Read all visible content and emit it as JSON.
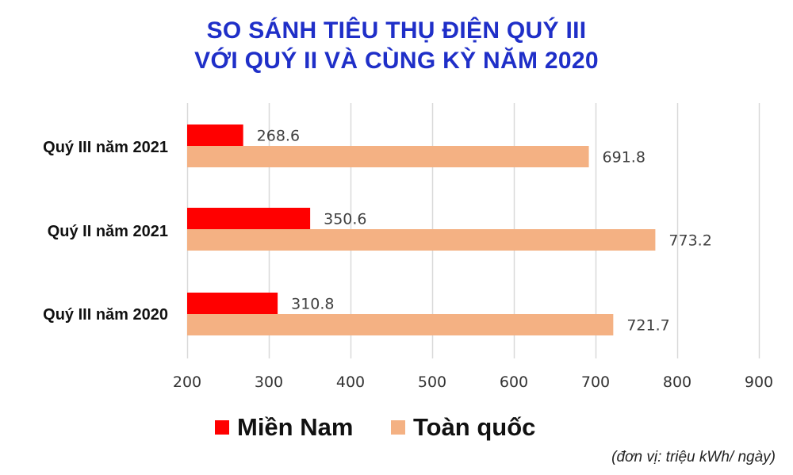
{
  "title_lines": [
    "SO SÁNH TIÊU THỤ ĐIỆN QUÝ III",
    "VỚI QUÝ II VÀ CÙNG KỲ NĂM 2020"
  ],
  "unit_note": "(đơn vị: triệu kWh/ ngày)",
  "colors": {
    "title": "#1f2fc8",
    "mien_nam": "#ff0000",
    "toan_quoc": "#f4b183",
    "grid": "#d9d9d9"
  },
  "chart_data": {
    "type": "bar",
    "orientation": "horizontal",
    "title": "SO SÁNH TIÊU THỤ ĐIỆN QUÝ III VỚI QUÝ II VÀ CÙNG KỲ NĂM 2020",
    "categories": [
      "Quý III năm 2021",
      "Quý II năm 2021",
      "Quý III năm 2020"
    ],
    "series": [
      {
        "name": "Miền Nam",
        "values": [
          268.6,
          350.6,
          310.8
        ],
        "labels": [
          "268.6",
          "350.6",
          "310.8"
        ]
      },
      {
        "name": "Toàn quốc",
        "values": [
          691.8,
          773.2,
          721.7
        ],
        "labels": [
          "691.8",
          "773.2",
          "721.7"
        ]
      }
    ],
    "xlim": [
      200,
      900
    ],
    "xticks": [
      200,
      300,
      400,
      500,
      600,
      700,
      800,
      900
    ],
    "xlabel": "",
    "ylabel": "",
    "grid": true,
    "legend_position": "bottom"
  }
}
